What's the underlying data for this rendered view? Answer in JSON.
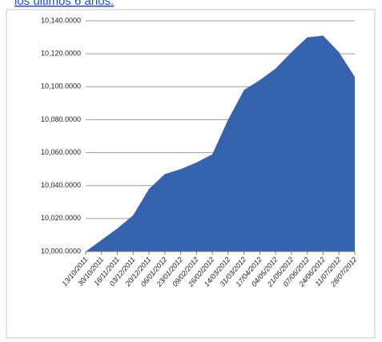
{
  "header": {
    "link": "los últimos 6 años:"
  },
  "chart_data": {
    "type": "area",
    "categories": [
      "13/10/2011",
      "30/10/2011",
      "16/11/2011",
      "03/12/2011",
      "20/12/2011",
      "06/01/2012",
      "23/01/2012",
      "09/02/2012",
      "26/02/2012",
      "14/03/2012",
      "31/03/2012",
      "17/04/2012",
      "04/05/2012",
      "21/05/2012",
      "07/06/2012",
      "24/06/2012",
      "11/07/2012",
      "28/07/2012"
    ],
    "values": [
      10000,
      10007,
      10014,
      10022,
      10038,
      10047,
      10050,
      10054,
      10059,
      10080,
      10098,
      10104,
      10111,
      10121,
      10130,
      10131,
      10121,
      10106
    ],
    "color": "#3563ad",
    "ylim": [
      10000,
      10140
    ],
    "yticks": [
      {
        "value": 10000,
        "label": "10,000.0000"
      },
      {
        "value": 10020,
        "label": "10,020.0000"
      },
      {
        "value": 10040,
        "label": "10,040.0000"
      },
      {
        "value": 10060,
        "label": "10,060.0000"
      },
      {
        "value": 10080,
        "label": "10,080.0000"
      },
      {
        "value": 10100,
        "label": "10,100.0000"
      },
      {
        "value": 10120,
        "label": "10,120.0000"
      },
      {
        "value": 10140,
        "label": "10,140.0000"
      }
    ],
    "grid": true
  }
}
